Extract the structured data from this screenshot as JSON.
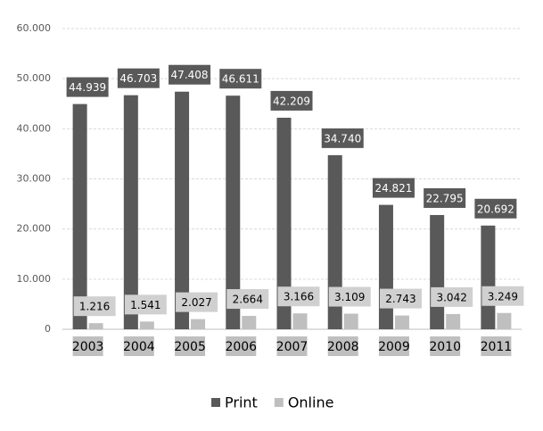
{
  "chart_data": {
    "type": "bar",
    "categories": [
      "2003",
      "2004",
      "2005",
      "2006",
      "2007",
      "2008",
      "2009",
      "2010",
      "2011"
    ],
    "series": [
      {
        "name": "Print",
        "color": "#595959",
        "values": [
          44939,
          46703,
          47408,
          46611,
          42209,
          34740,
          24821,
          22795,
          20692
        ],
        "value_labels": [
          "44.939",
          "46.703",
          "47.408",
          "46.611",
          "42.209",
          "34.740",
          "24.821",
          "22.795",
          "20.692"
        ]
      },
      {
        "name": "Online",
        "color": "#bfbfbf",
        "values": [
          1216,
          1541,
          2027,
          2664,
          3166,
          3109,
          2743,
          3042,
          3249
        ],
        "value_labels": [
          "1.216",
          "1.541",
          "2.027",
          "2.664",
          "3.166",
          "3.109",
          "2.743",
          "3.042",
          "3.249"
        ]
      }
    ],
    "ylim": [
      0,
      60000
    ],
    "yticks": [
      0,
      {
        "value": 10000,
        "label": "10.000"
      },
      {
        "value": 20000,
        "label": "20.000"
      },
      {
        "value": 30000,
        "label": "30.000"
      },
      {
        "value": 40000,
        "label": "40.000"
      },
      {
        "value": 50000,
        "label": "50.000"
      },
      {
        "value": 60000,
        "label": "60.000"
      }
    ],
    "grid": true,
    "legend": "bottom"
  }
}
